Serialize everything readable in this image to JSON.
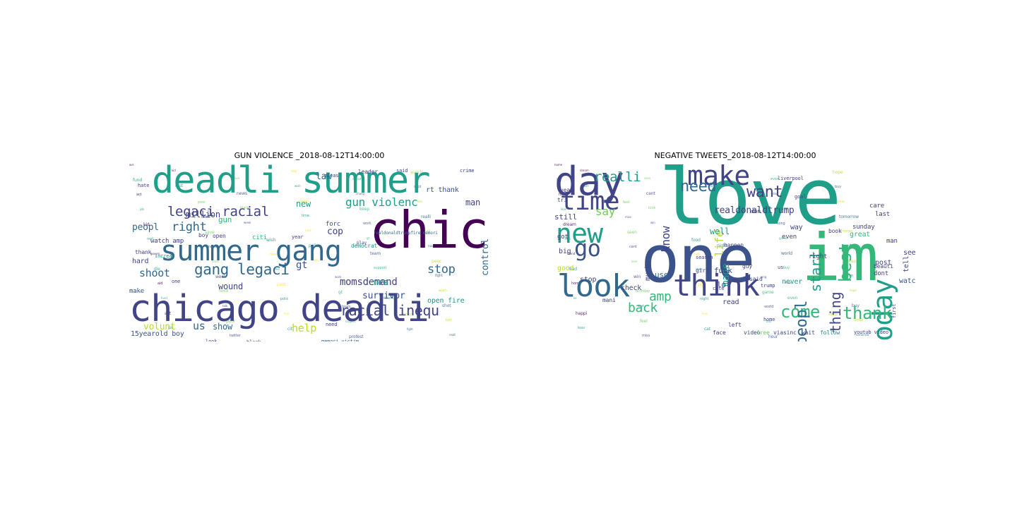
{
  "palette": {
    "dark_purple": "#440154",
    "indigo": "#3b528b",
    "slate_blue": "#414487",
    "teal_blue": "#31688e",
    "teal": "#21918c",
    "sea_green": "#1f9e89",
    "green": "#35b779",
    "light_green": "#6ece58",
    "lime": "#b5de2b",
    "yellow": "#fde725"
  },
  "panels": [
    {
      "title": "GUN VIOLENCE _2018-08-12T14:00:00",
      "words": [
        {
          "t": "chicago",
          "c": "dark_purple",
          "s": 72
        },
        {
          "t": "deadli summer",
          "c": "sea_green",
          "s": 52
        },
        {
          "t": "chicago deadli",
          "c": "slate_blue",
          "s": 52
        },
        {
          "t": "summer gang",
          "c": "teal_blue",
          "s": 40
        },
        {
          "t": "legaci racial",
          "c": "slate_blue",
          "s": 19
        },
        {
          "t": "gang legaci",
          "c": "teal_blue",
          "s": 21
        },
        {
          "t": "racial inequ",
          "c": "slate_blue",
          "s": 20
        },
        {
          "t": "gun violenc",
          "c": "sea_green",
          "s": 16
        },
        {
          "t": "right",
          "c": "teal_blue",
          "s": 17
        },
        {
          "t": "peopl",
          "c": "teal_blue",
          "s": 13
        },
        {
          "t": "shoot",
          "c": "teal_blue",
          "s": 15
        },
        {
          "t": "stop",
          "c": "teal_blue",
          "s": 17
        },
        {
          "t": "momsdemand",
          "c": "slate_blue",
          "s": 14
        },
        {
          "t": "survivor",
          "c": "indigo",
          "s": 13
        },
        {
          "t": "control",
          "c": "teal_blue",
          "s": 13
        },
        {
          "t": "nra",
          "c": "teal",
          "s": 12
        },
        {
          "t": "cop",
          "c": "slate_blue",
          "s": 13
        },
        {
          "t": "million",
          "c": "slate_blue",
          "s": 12
        },
        {
          "t": "law",
          "c": "teal_blue",
          "s": 13
        },
        {
          "t": "new",
          "c": "sea_green",
          "s": 12
        },
        {
          "t": "man",
          "c": "slate_blue",
          "s": 12
        },
        {
          "t": "help",
          "c": "lime",
          "s": 15
        },
        {
          "t": "us",
          "c": "teal_blue",
          "s": 15
        },
        {
          "t": "show",
          "c": "teal_blue",
          "s": 12
        },
        {
          "t": "volunt",
          "c": "lime",
          "s": 13
        },
        {
          "t": "wound",
          "c": "slate_blue",
          "s": 12
        },
        {
          "t": "gt",
          "c": "indigo",
          "s": 14
        },
        {
          "t": "gun",
          "c": "green",
          "s": 11
        },
        {
          "t": "open fire",
          "c": "teal",
          "s": 10
        },
        {
          "t": "rt thank",
          "c": "indigo",
          "s": 10
        },
        {
          "t": "15yearold boy",
          "c": "indigo",
          "s": 10
        },
        {
          "t": "watch amp",
          "c": "slate_blue",
          "s": 9
        },
        {
          "t": "hard",
          "c": "slate_blue",
          "s": 10
        },
        {
          "t": "make",
          "c": "indigo",
          "s": 9
        },
        {
          "t": "thank",
          "c": "slate_blue",
          "s": 8
        },
        {
          "t": "leader",
          "c": "slate_blue",
          "s": 8
        },
        {
          "t": "democrat",
          "c": "teal",
          "s": 8
        },
        {
          "t": "boy",
          "c": "slate_blue",
          "s": 8
        },
        {
          "t": "open",
          "c": "slate_blue",
          "s": 8
        },
        {
          "t": "citi",
          "c": "green",
          "s": 9
        },
        {
          "t": "forc",
          "c": "indigo",
          "s": 9
        },
        {
          "t": "need",
          "c": "slate_blue",
          "s": 7
        },
        {
          "t": "memori victim",
          "c": "teal_blue",
          "s": 7
        },
        {
          "t": "black",
          "c": "slate_blue",
          "s": 7
        },
        {
          "t": "look",
          "c": "slate_blue",
          "s": 7
        },
        {
          "t": "realdonaldtrumpfire memori",
          "c": "teal_blue",
          "s": 6
        },
        {
          "t": "pleas",
          "c": "slate_blue",
          "s": 7
        },
        {
          "t": "said",
          "c": "slate_blue",
          "s": 7
        },
        {
          "t": "crime",
          "c": "slate_blue",
          "s": 7
        },
        {
          "t": "hate",
          "c": "slate_blue",
          "s": 7
        },
        {
          "t": "year",
          "c": "slate_blue",
          "s": 7
        },
        {
          "t": "play",
          "c": "slate_blue",
          "s": 6
        },
        {
          "t": "increas",
          "c": "teal",
          "s": 7
        },
        {
          "t": "one",
          "c": "slate_blue",
          "s": 7
        }
      ]
    },
    {
      "title": "NEGATIVE TWEETS_2018-08-12T14:00:00",
      "words": [
        {
          "t": "love",
          "c": "sea_green",
          "s": 110
        },
        {
          "t": "one",
          "c": "indigo",
          "s": 92
        },
        {
          "t": "im",
          "c": "green",
          "s": 92
        },
        {
          "t": "day",
          "c": "slate_blue",
          "s": 56
        },
        {
          "t": "make",
          "c": "slate_blue",
          "s": 38
        },
        {
          "t": "today",
          "c": "sea_green",
          "s": 38
        },
        {
          "t": "time",
          "c": "slate_blue",
          "s": 36
        },
        {
          "t": "new",
          "c": "sea_green",
          "s": 38
        },
        {
          "t": "look",
          "c": "teal_blue",
          "s": 44
        },
        {
          "t": "think",
          "c": "slate_blue",
          "s": 42
        },
        {
          "t": "go",
          "c": "indigo",
          "s": 32
        },
        {
          "t": "want",
          "c": "slate_blue",
          "s": 22
        },
        {
          "t": "need",
          "c": "teal_blue",
          "s": 22
        },
        {
          "t": "realli",
          "c": "sea_green",
          "s": 19
        },
        {
          "t": "best",
          "c": "green",
          "s": 24
        },
        {
          "t": "thank",
          "c": "green",
          "s": 24
        },
        {
          "t": "come",
          "c": "green",
          "s": 24
        },
        {
          "t": "peopl",
          "c": "teal_blue",
          "s": 22
        },
        {
          "t": "thing",
          "c": "slate_blue",
          "s": 20
        },
        {
          "t": "start",
          "c": "sea_green",
          "s": 20
        },
        {
          "t": "know",
          "c": "slate_blue",
          "s": 16
        },
        {
          "t": "say",
          "c": "light_green",
          "s": 16
        },
        {
          "t": "life",
          "c": "lime",
          "s": 16
        },
        {
          "t": "made",
          "c": "sea_green",
          "s": 14
        },
        {
          "t": "back",
          "c": "green",
          "s": 18
        },
        {
          "t": "amp",
          "c": "green",
          "s": 18
        },
        {
          "t": "realdonaldtrump",
          "c": "slate_blue",
          "s": 13
        },
        {
          "t": "well",
          "c": "sea_green",
          "s": 12
        },
        {
          "t": "fuck",
          "c": "slate_blue",
          "s": 11
        },
        {
          "t": "lol",
          "c": "slate_blue",
          "s": 11
        },
        {
          "t": "still",
          "c": "slate_blue",
          "s": 11
        },
        {
          "t": "use",
          "c": "teal_blue",
          "s": 11
        },
        {
          "t": "much",
          "c": "slate_blue",
          "s": 10
        },
        {
          "t": "watch",
          "c": "indigo",
          "s": 10
        },
        {
          "t": "tell",
          "c": "slate_blue",
          "s": 10
        },
        {
          "t": "see",
          "c": "slate_blue",
          "s": 10
        },
        {
          "t": "post",
          "c": "slate_blue",
          "s": 10
        },
        {
          "t": "read",
          "c": "slate_blue",
          "s": 10
        },
        {
          "t": "never",
          "c": "sea_green",
          "s": 10
        },
        {
          "t": "stop",
          "c": "slate_blue",
          "s": 10
        },
        {
          "t": "check",
          "c": "slate_blue",
          "s": 10
        },
        {
          "t": "good",
          "c": "lime",
          "s": 10
        },
        {
          "t": "big",
          "c": "slate_blue",
          "s": 10
        },
        {
          "t": "got",
          "c": "slate_blue",
          "s": 9
        },
        {
          "t": "man",
          "c": "slate_blue",
          "s": 9
        },
        {
          "t": "way",
          "c": "slate_blue",
          "s": 10
        },
        {
          "t": "right",
          "c": "slate_blue",
          "s": 9
        },
        {
          "t": "great",
          "c": "green",
          "s": 10
        },
        {
          "t": "sunday",
          "c": "slate_blue",
          "s": 9
        },
        {
          "t": "even",
          "c": "slate_blue",
          "s": 9
        },
        {
          "t": "last",
          "c": "slate_blue",
          "s": 9
        },
        {
          "t": "care",
          "c": "slate_blue",
          "s": 9
        },
        {
          "t": "dont",
          "c": "slate_blue",
          "s": 9
        },
        {
          "t": "girl",
          "c": "slate_blue",
          "s": 8
        },
        {
          "t": "left",
          "c": "slate_blue",
          "s": 8
        },
        {
          "t": "face",
          "c": "slate_blue",
          "s": 8
        },
        {
          "t": "video",
          "c": "slate_blue",
          "s": 8
        },
        {
          "t": "free",
          "c": "light_green",
          "s": 8
        },
        {
          "t": "via",
          "c": "slate_blue",
          "s": 8
        },
        {
          "t": "sinc",
          "c": "slate_blue",
          "s": 8
        },
        {
          "t": "wait",
          "c": "slate_blue",
          "s": 8
        },
        {
          "t": "follow",
          "c": "teal",
          "s": 8
        },
        {
          "t": "beauti",
          "c": "slate_blue",
          "s": 8
        },
        {
          "t": "year",
          "c": "slate_blue",
          "s": 8
        },
        {
          "t": "tri",
          "c": "slate_blue",
          "s": 8
        },
        {
          "t": "guy",
          "c": "slate_blue",
          "s": 8
        },
        {
          "t": "said",
          "c": "slate_blue",
          "s": 8
        },
        {
          "t": "book",
          "c": "slate_blue",
          "s": 8
        },
        {
          "t": "happen",
          "c": "slate_blue",
          "s": 8
        },
        {
          "t": "season",
          "c": "slate_blue",
          "s": 7
        },
        {
          "t": "trump",
          "c": "slate_blue",
          "s": 7
        },
        {
          "t": "don",
          "c": "slate_blue",
          "s": 8
        },
        {
          "t": "home",
          "c": "slate_blue",
          "s": 7
        },
        {
          "t": "cute",
          "c": "slate_blue",
          "s": 7
        },
        {
          "t": "first",
          "c": "slate_blue",
          "s": 7
        },
        {
          "t": "liverpool",
          "c": "slate_blue",
          "s": 7
        },
        {
          "t": "youtub video",
          "c": "slate_blue",
          "s": 7
        },
        {
          "t": "mani",
          "c": "slate_blue",
          "s": 8
        },
        {
          "t": "goal",
          "c": "slate_blue",
          "s": 7
        },
        {
          "t": "us",
          "c": "slate_blue",
          "s": 7
        }
      ]
    }
  ]
}
